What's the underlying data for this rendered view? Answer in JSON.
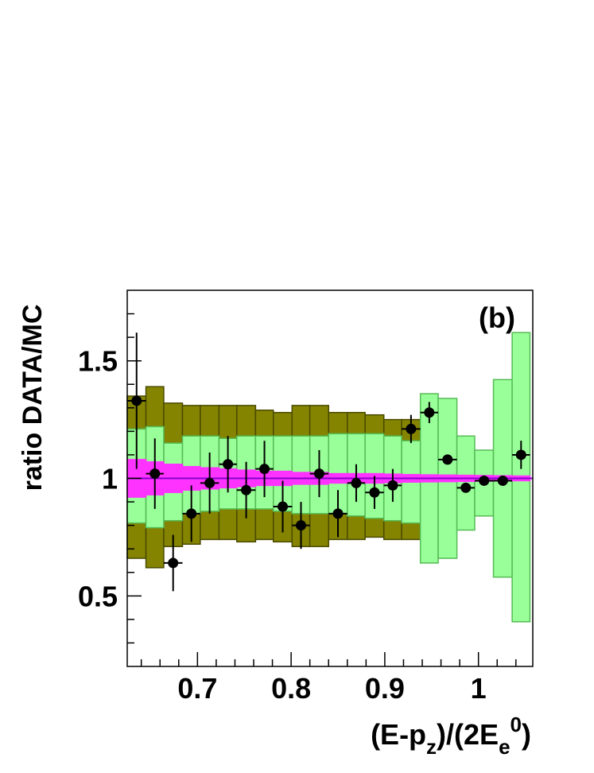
{
  "chart_data": {
    "type": "ratio_histogram",
    "annotation": "(b)",
    "y_label": "ratio DATA/MC",
    "x_label_parts": [
      {
        "text": "(E-p",
        "pos": "base"
      },
      {
        "text": "z",
        "pos": "sub"
      },
      {
        "text": ")/(2E",
        "pos": "base"
      },
      {
        "text": "e",
        "pos": "sub"
      },
      {
        "text": "0",
        "pos": "sup"
      },
      {
        "text": ")",
        "pos": "base"
      }
    ],
    "xlim": [
      0.625,
      1.058
    ],
    "ylim": [
      0.2,
      1.8
    ],
    "xticks": [
      0.7,
      0.8,
      0.9,
      1
    ],
    "xminorticks": [
      0.64,
      0.66,
      0.68,
      0.72,
      0.74,
      0.76,
      0.78,
      0.82,
      0.84,
      0.86,
      0.88,
      0.92,
      0.94,
      0.96,
      0.98,
      1.02,
      1.04
    ],
    "yticks": [
      0.5,
      1,
      1.5
    ],
    "yminorticks": [
      0.3,
      0.4,
      0.6,
      0.7,
      0.8,
      0.9,
      1.1,
      1.2,
      1.3,
      1.4,
      1.6,
      1.7
    ],
    "bins": [
      0.625,
      0.645,
      0.664,
      0.684,
      0.703,
      0.723,
      0.742,
      0.762,
      0.781,
      0.801,
      0.82,
      0.84,
      0.86,
      0.879,
      0.899,
      0.918,
      0.938,
      0.957,
      0.977,
      0.996,
      1.016,
      1.036,
      1.055
    ],
    "reference_line": {
      "value": 1,
      "color": "#8800cc"
    },
    "bands": [
      {
        "color": "#848400",
        "edge": "#4a4a00",
        "upper": [
          1.35,
          1.39,
          1.32,
          1.31,
          1.31,
          1.31,
          1.31,
          1.29,
          1.28,
          1.31,
          1.31,
          1.28,
          1.28,
          1.27,
          1.25,
          1.25,
          null,
          null,
          null,
          null,
          null,
          null
        ],
        "lower": [
          0.66,
          0.62,
          0.71,
          0.72,
          0.74,
          0.74,
          0.73,
          0.74,
          0.73,
          0.71,
          0.71,
          0.74,
          0.74,
          0.75,
          0.74,
          0.74,
          null,
          null,
          null,
          null,
          null,
          null
        ]
      },
      {
        "color": "#99ff99",
        "edge": "#55bb55",
        "upper": [
          1.21,
          1.22,
          1.15,
          1.18,
          1.18,
          1.17,
          1.18,
          1.18,
          1.18,
          1.18,
          1.18,
          1.19,
          1.19,
          1.19,
          1.18,
          1.16,
          1.36,
          1.34,
          1.18,
          1.12,
          1.42,
          1.62
        ],
        "lower": [
          0.81,
          0.79,
          0.82,
          0.85,
          0.86,
          0.87,
          0.87,
          0.87,
          0.86,
          0.85,
          0.85,
          0.85,
          0.84,
          0.83,
          0.82,
          0.81,
          0.64,
          0.66,
          0.78,
          0.84,
          0.58,
          0.39
        ]
      },
      {
        "color": "#ff33ff",
        "edge": "#ff33ff",
        "upper": [
          1.08,
          1.07,
          1.06,
          1.05,
          1.045,
          1.04,
          1.035,
          1.03,
          1.03,
          1.025,
          1.025,
          1.02,
          1.02,
          1.02,
          1.018,
          1.016,
          1.015,
          1.014,
          1.013,
          1.012,
          1.011,
          1.01
        ],
        "lower": [
          0.92,
          0.93,
          0.94,
          0.95,
          0.955,
          0.96,
          0.965,
          0.97,
          0.97,
          0.975,
          0.975,
          0.98,
          0.98,
          0.98,
          0.982,
          0.984,
          0.985,
          0.986,
          0.987,
          0.988,
          0.989,
          0.99
        ]
      }
    ],
    "points": {
      "color": "#000000",
      "values": [
        1.33,
        1.02,
        0.64,
        0.85,
        0.98,
        1.06,
        0.95,
        1.04,
        0.88,
        0.8,
        1.02,
        0.85,
        0.98,
        0.94,
        0.97,
        1.21,
        1.28,
        1.08,
        0.96,
        0.99,
        0.99,
        1.1
      ],
      "errors": [
        0.29,
        0.15,
        0.12,
        0.12,
        0.13,
        0.12,
        0.12,
        0.12,
        0.11,
        0.1,
        0.1,
        0.1,
        0.08,
        0.07,
        0.07,
        0.06,
        0.045,
        0.02,
        0.02,
        0.02,
        0.02,
        0.06
      ]
    }
  }
}
